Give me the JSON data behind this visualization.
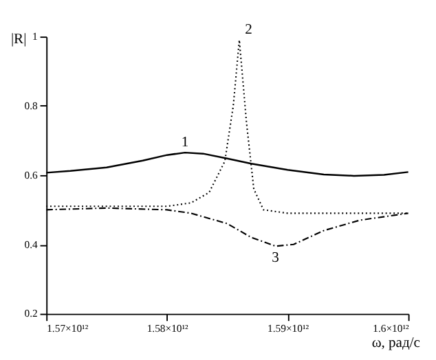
{
  "chart_data": {
    "type": "line",
    "xlabel": "ω, рад/с",
    "ylabel": "|R|",
    "xlim": [
      1570000000000.0,
      1600000000000.0
    ],
    "ylim": [
      0.2,
      1
    ],
    "xticks": [
      {
        "value": 1570000000000.0,
        "label": "1.57×10¹²"
      },
      {
        "value": 1580000000000.0,
        "label": "1.58×10¹²"
      },
      {
        "value": 1590000000000.0,
        "label": "1.59×10¹²"
      },
      {
        "value": 1600000000000.0,
        "label": "1.6×10¹²"
      }
    ],
    "yticks": [
      0.2,
      0.4,
      0.6,
      0.8,
      {
        "value": 1,
        "label": "1"
      }
    ],
    "grid": false,
    "legend": false,
    "marker": "none",
    "series": [
      {
        "name": "1",
        "color": "#000000",
        "line_style": "solid",
        "x": [
          1570000000000.0,
          1572000000000.0,
          1575000000000.0,
          1578000000000.0,
          1580000000000.0,
          1581500000000.0,
          1583000000000.0,
          1585000000000.0,
          1587000000000.0,
          1590000000000.0,
          1593000000000.0,
          1595500000000.0,
          1598000000000.0,
          1600000000000.0
        ],
        "values": [
          0.607,
          0.612,
          0.622,
          0.642,
          0.658,
          0.665,
          0.662,
          0.648,
          0.633,
          0.615,
          0.602,
          0.598,
          0.601,
          0.609
        ]
      },
      {
        "name": "2",
        "color": "#000000",
        "line_style": "dotted",
        "x": [
          1570000000000.0,
          1575000000000.0,
          1580000000000.0,
          1582000000000.0,
          1583500000000.0,
          1584800000000.0,
          1585500000000.0,
          1586000000000.0,
          1586600000000.0,
          1587200000000.0,
          1588000000000.0,
          1590000000000.0,
          1595000000000.0,
          1600000000000.0
        ],
        "values": [
          0.51,
          0.51,
          0.51,
          0.52,
          0.55,
          0.64,
          0.8,
          0.99,
          0.75,
          0.56,
          0.5,
          0.49,
          0.49,
          0.49
        ]
      },
      {
        "name": "3",
        "color": "#000000",
        "line_style": "dashed",
        "x": [
          1570000000000.0,
          1575000000000.0,
          1580000000000.0,
          1582000000000.0,
          1585000000000.0,
          1587000000000.0,
          1589000000000.0,
          1590500000000.0,
          1593000000000.0,
          1596000000000.0,
          1600000000000.0
        ],
        "values": [
          0.5,
          0.505,
          0.5,
          0.49,
          0.46,
          0.42,
          0.395,
          0.4,
          0.44,
          0.47,
          0.49
        ]
      }
    ]
  }
}
